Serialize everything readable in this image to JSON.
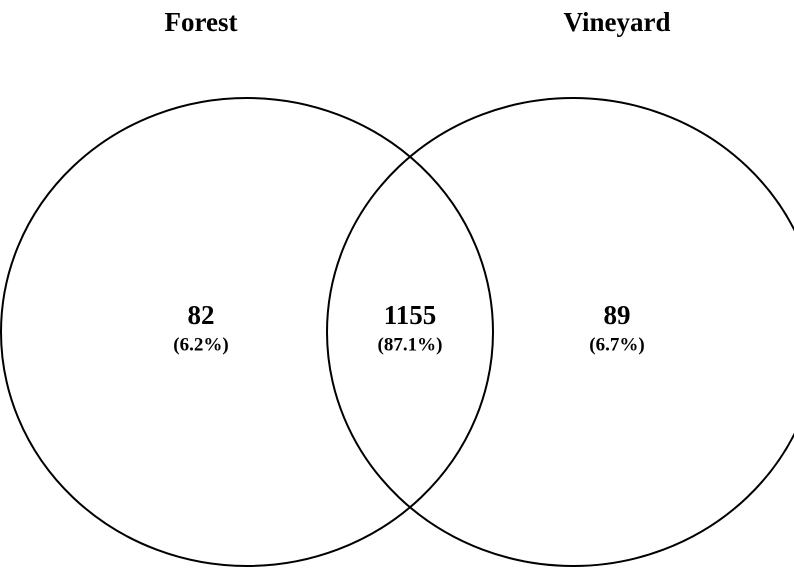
{
  "sets": [
    {
      "name": "Forest"
    },
    {
      "name": "Vineyard"
    }
  ],
  "regions": [
    {
      "count": "82",
      "percent": "(6.2%)"
    },
    {
      "count": "1155",
      "percent": "(87.1%)"
    },
    {
      "count": "89",
      "percent": "(6.7%)"
    }
  ]
}
